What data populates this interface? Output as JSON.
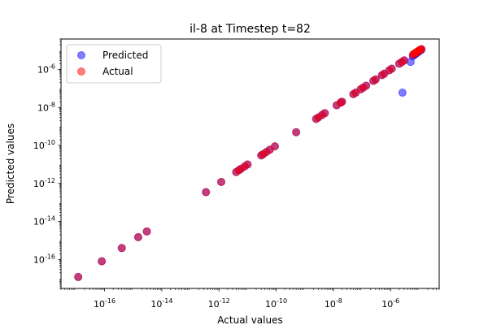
{
  "chart_data": {
    "type": "scatter",
    "title": "il-8 at Timestep t=82",
    "xlabel": "Actual values",
    "ylabel": "Predicted values",
    "xscale": "log",
    "yscale": "log",
    "xlim": [
      3e-18,
      5e-05
    ],
    "ylim": [
      3e-18,
      4e-05
    ],
    "x_ticks": [
      {
        "value": 1e-16,
        "label": "10^-16"
      },
      {
        "value": 1e-14,
        "label": "10^-14"
      },
      {
        "value": 1e-12,
        "label": "10^-12"
      },
      {
        "value": 1e-10,
        "label": "10^-10"
      },
      {
        "value": 1e-08,
        "label": "10^-8"
      },
      {
        "value": 1e-06,
        "label": "10^-6"
      }
    ],
    "y_ticks": [
      {
        "value": 1e-16,
        "label": "10^-16"
      },
      {
        "value": 1e-14,
        "label": "10^-14"
      },
      {
        "value": 1e-12,
        "label": "10^-12"
      },
      {
        "value": 1e-10,
        "label": "10^-10"
      },
      {
        "value": 1e-08,
        "label": "10^-8"
      },
      {
        "value": 1e-06,
        "label": "10^-6"
      }
    ],
    "grid": false,
    "legend": {
      "placement": "top-left"
    },
    "series": [
      {
        "name": "Predicted",
        "color": "#0000ff",
        "alpha": 0.5,
        "x": [
          1.2e-17,
          8e-17,
          4e-16,
          1.5e-15,
          3e-15,
          3.5e-13,
          1.2e-12,
          4e-12,
          5e-12,
          6e-12,
          8e-12,
          1e-11,
          3e-11,
          3.5e-11,
          4.5e-11,
          6e-11,
          9e-11,
          5e-10,
          2.5e-09,
          3e-09,
          4e-09,
          5e-09,
          1.3e-08,
          1.8e-08,
          2e-08,
          5e-08,
          6e-08,
          9e-08,
          1.1e-07,
          1.4e-07,
          2.5e-07,
          3e-07,
          5e-07,
          6e-07,
          9e-07,
          1.1e-06,
          2e-06,
          2.5e-06,
          3e-06,
          2.6e-06,
          5e-06,
          6e-06,
          7e-06,
          8e-06,
          9e-06,
          1e-05,
          1.1e-05,
          1.2e-05,
          6.5e-06,
          7.5e-06,
          8.5e-06,
          9.5e-06,
          1.05e-05,
          1.15e-05
        ],
        "y": [
          1.2e-17,
          8e-17,
          4e-16,
          1.5e-15,
          3e-15,
          3.5e-13,
          1.2e-12,
          4e-12,
          5e-12,
          6e-12,
          8e-12,
          1e-11,
          3e-11,
          3.5e-11,
          4.5e-11,
          6e-11,
          9e-11,
          5e-10,
          2.5e-09,
          3e-09,
          4e-09,
          5e-09,
          1.3e-08,
          1.8e-08,
          2e-08,
          5e-08,
          6e-08,
          9e-08,
          1.1e-07,
          1.4e-07,
          2.5e-07,
          3e-07,
          5e-07,
          6e-07,
          9e-07,
          1.1e-06,
          2e-06,
          2.5e-06,
          3e-06,
          6e-08,
          2.5e-06,
          5e-06,
          6e-06,
          7e-06,
          8e-06,
          9e-06,
          1e-05,
          1.1e-05,
          6e-06,
          7e-06,
          8e-06,
          9e-06,
          1e-05,
          1.1e-05
        ]
      },
      {
        "name": "Actual",
        "color": "#ff0000",
        "alpha": 0.5,
        "x": [
          1.2e-17,
          8e-17,
          4e-16,
          1.5e-15,
          3e-15,
          3.5e-13,
          1.2e-12,
          4e-12,
          5e-12,
          6e-12,
          8e-12,
          1e-11,
          3e-11,
          3.5e-11,
          4.5e-11,
          6e-11,
          9e-11,
          5e-10,
          2.5e-09,
          3e-09,
          4e-09,
          5e-09,
          1.3e-08,
          1.8e-08,
          2e-08,
          5e-08,
          6e-08,
          9e-08,
          1.1e-07,
          1.4e-07,
          2.5e-07,
          3e-07,
          5e-07,
          6e-07,
          9e-07,
          1.1e-06,
          2e-06,
          2.5e-06,
          3e-06,
          6e-06,
          7e-06,
          8e-06,
          9e-06,
          1e-05,
          1.1e-05,
          1.2e-05,
          6.5e-06,
          7.5e-06,
          8.5e-06,
          9.5e-06,
          1.05e-05
        ],
        "y": [
          1.2e-17,
          8e-17,
          4e-16,
          1.5e-15,
          3e-15,
          3.5e-13,
          1.2e-12,
          4e-12,
          5e-12,
          6e-12,
          8e-12,
          1e-11,
          3e-11,
          3.5e-11,
          4.5e-11,
          6e-11,
          9e-11,
          5e-10,
          2.5e-09,
          3e-09,
          4e-09,
          5e-09,
          1.3e-08,
          1.8e-08,
          2e-08,
          5e-08,
          6e-08,
          9e-08,
          1.1e-07,
          1.4e-07,
          2.5e-07,
          3e-07,
          5e-07,
          6e-07,
          9e-07,
          1.1e-06,
          2e-06,
          2.5e-06,
          3e-06,
          6e-06,
          7e-06,
          8e-06,
          9e-06,
          1e-05,
          1.1e-05,
          1.2e-05,
          6.5e-06,
          7.5e-06,
          8.5e-06,
          9.5e-06,
          1.05e-05
        ]
      }
    ]
  }
}
